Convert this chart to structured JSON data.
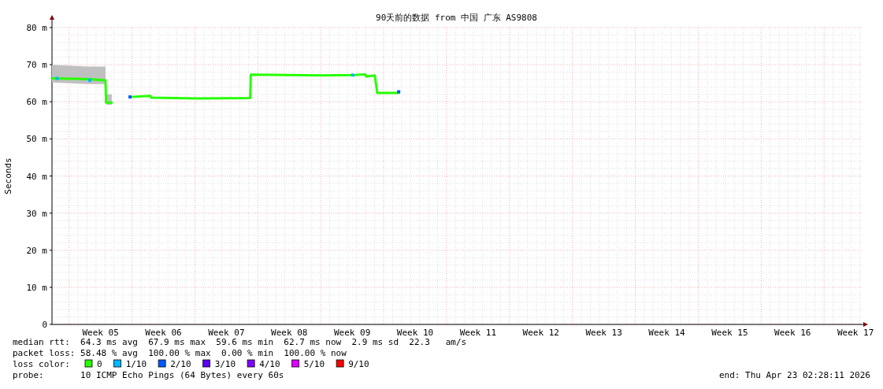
{
  "chart_data": {
    "type": "line",
    "title": "90天前的数据 from 中国 广东 AS9808",
    "ylabel": "Seconds",
    "xlim": [
      "2026-01-23T02:28",
      "2026-04-23T02:28"
    ],
    "ylim": [
      0,
      80
    ],
    "xticks": [
      {
        "value": "2026-01-28T12:00",
        "label": "Week 05"
      },
      {
        "value": "2026-02-04T12:00",
        "label": "Week 06"
      },
      {
        "value": "2026-02-11T12:00",
        "label": "Week 07"
      },
      {
        "value": "2026-02-18T12:00",
        "label": "Week 08"
      },
      {
        "value": "2026-02-25T12:00",
        "label": "Week 09"
      },
      {
        "value": "2026-03-04T12:00",
        "label": "Week 10"
      },
      {
        "value": "2026-03-11T12:00",
        "label": "Week 11"
      },
      {
        "value": "2026-03-18T12:00",
        "label": "Week 12"
      },
      {
        "value": "2026-03-25T12:00",
        "label": "Week 13"
      },
      {
        "value": "2026-04-01T12:00",
        "label": "Week 14"
      },
      {
        "value": "2026-04-08T12:00",
        "label": "Week 15"
      },
      {
        "value": "2026-04-15T12:00",
        "label": "Week 16"
      },
      {
        "value": "2026-04-22T12:00",
        "label": "Week 17"
      }
    ],
    "yticks": [
      0,
      {
        "value": 10,
        "label": "10 m"
      },
      {
        "value": 20,
        "label": "20 m"
      },
      {
        "value": 30,
        "label": "30 m"
      },
      {
        "value": 40,
        "label": "40 m"
      },
      {
        "value": 50,
        "label": "50 m"
      },
      {
        "value": 60,
        "label": "60 m"
      },
      {
        "value": 70,
        "label": "70 m"
      },
      {
        "value": 80,
        "label": "80 m"
      }
    ],
    "grid": true,
    "legend": "bottom left",
    "legend_title": "loss color:",
    "series": [
      {
        "name": "0",
        "color": "#26ff00",
        "x": [
          "2026-01-23T02:28",
          "2026-01-27T04:00",
          "2026-01-29T01:15",
          "2026-01-29T02:55",
          "2026-01-29T18:00",
          "2026-01-29T19:45",
          "2026-01-31T18:45",
          "2026-02-03T00:30",
          "2026-02-03T04:00",
          "2026-02-08T01:30",
          "2026-02-14T03:40",
          "2026-02-14T05:20",
          "2026-02-22T01:30",
          "2026-02-25T20:15",
          "2026-02-26T23:10",
          "2026-02-27T01:30",
          "2026-02-28T00:20",
          "2026-02-28T07:00",
          "2026-03-02T16:10"
        ],
        "values": [
          66.3,
          66.1,
          65.8,
          59.8,
          59.8,
          null,
          61.3,
          61.6,
          61.1,
          60.9,
          61,
          67.3,
          67.1,
          67.2,
          67.4,
          66.8,
          67.1,
          62.4,
          62.4
        ],
        "lower": [
          65.2,
          64.8,
          64.8,
          59.2,
          59.2,
          null,
          null,
          null,
          null,
          null,
          null,
          null,
          null,
          null,
          null,
          null,
          null,
          null,
          null
        ],
        "upper": [
          70,
          69.5,
          69.5,
          62,
          62,
          null,
          null,
          null,
          null,
          null,
          null,
          null,
          null,
          null,
          null,
          null,
          null,
          null,
          null
        ]
      },
      {
        "name": "1/10",
        "type": "scatter",
        "color": "#00b8ff",
        "x": [
          "2026-01-23T16:00",
          "2026-01-27T07:15",
          "2026-02-25T13:30"
        ],
        "values": [
          66.3,
          65.8,
          67.2
        ]
      },
      {
        "name": "2/10",
        "type": "scatter",
        "color": "#0059ff",
        "x": [
          "2026-01-31T18:45",
          "2026-03-02T16:10"
        ],
        "values": [
          61.3,
          62.7
        ]
      },
      {
        "name": "3/10",
        "type": "scatter",
        "color": "#5e00ff"
      },
      {
        "name": "4/10",
        "type": "scatter",
        "color": "#7e00ff"
      },
      {
        "name": "5/10",
        "type": "scatter",
        "color": "#dd00ff"
      },
      {
        "name": "9/10",
        "type": "scatter",
        "color": "#ff0000"
      }
    ],
    "annotations": [
      "median rtt:  64.3 ms avg  67.9 ms max  59.6 ms min  62.7 ms now  2.9 ms sd  22.3   am/s",
      "packet loss: 58.48 % avg  100.00 % max  0.00 % min  100.00 % now",
      "probe:       10 ICMP Echo Pings (64 Bytes) every 60s",
      "end: Thu Apr 23 02:28:11 2026"
    ]
  }
}
